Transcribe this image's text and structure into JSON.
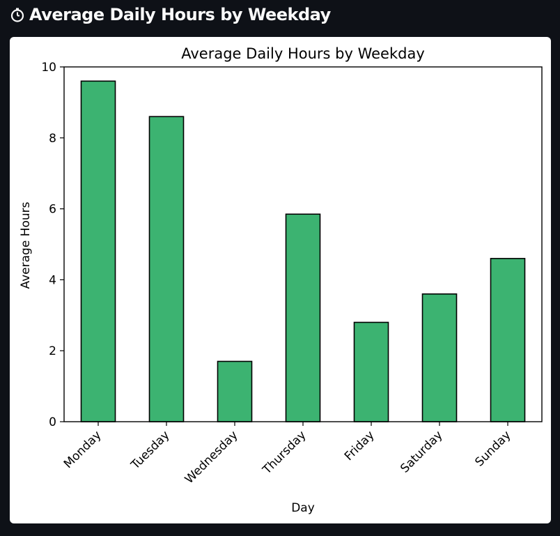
{
  "header": {
    "title": "Average Daily Hours by Weekday",
    "icon": "stopwatch-icon"
  },
  "colors": {
    "page_background": "#0e1117",
    "card_background": "#ffffff",
    "bar_fill": "#3cb371",
    "bar_edge": "#000000",
    "header_text": "#fafafa"
  },
  "chart_data": {
    "type": "bar",
    "title": "Average Daily Hours by Weekday",
    "xlabel": "Day",
    "ylabel": "Average Hours",
    "categories": [
      "Monday",
      "Tuesday",
      "Wednesday",
      "Thursday",
      "Friday",
      "Saturday",
      "Sunday"
    ],
    "values": [
      9.6,
      8.6,
      1.7,
      5.85,
      2.8,
      3.6,
      4.6
    ],
    "ylim": [
      0,
      10
    ],
    "yticks": [
      0,
      2,
      4,
      6,
      8,
      10
    ],
    "grid": false,
    "legend": "none"
  }
}
